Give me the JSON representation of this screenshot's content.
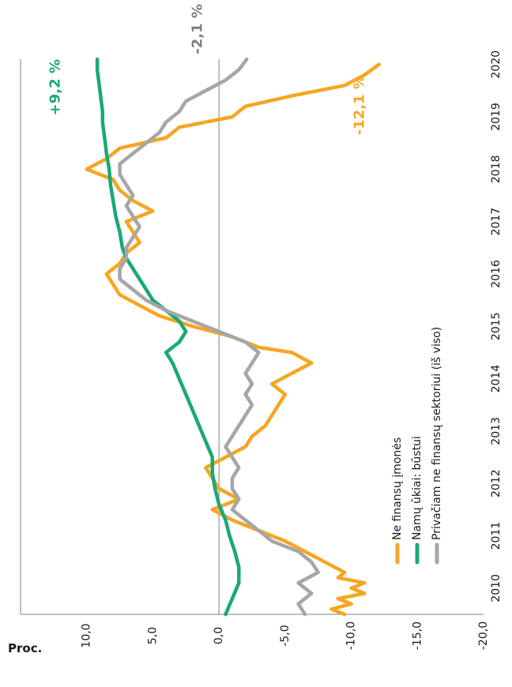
{
  "chart_data": {
    "type": "line",
    "orientation": "rotated-90-counterclockwise",
    "ylabel": "Proc.",
    "ylim": [
      -20,
      15
    ],
    "yticks": [
      -20,
      -15,
      -10,
      -5,
      0,
      5,
      10
    ],
    "ytick_labels": [
      "-20,0",
      "-15,0",
      "-10,0",
      "-5,0",
      "0,0",
      "5,0",
      "10,0"
    ],
    "xlim": [
      2010.0,
      2020.6
    ],
    "xticks": [
      2010,
      2011,
      2012,
      2013,
      2014,
      2015,
      2016,
      2017,
      2018,
      2019,
      2020
    ],
    "xtick_labels": [
      "2010",
      "2011",
      "2012",
      "2013",
      "2014",
      "2015",
      "2016",
      "2017",
      "2018",
      "2019",
      "2020"
    ],
    "zero_line": true,
    "grid": false,
    "legend_position": "bottom-left",
    "series": [
      {
        "name": "Ne finansų įmonės",
        "color": "#f5a623",
        "x": [
          2010.0,
          2010.1,
          2010.2,
          2010.3,
          2010.4,
          2010.5,
          2010.6,
          2010.7,
          2010.8,
          2011.0,
          2011.2,
          2011.4,
          2011.6,
          2011.8,
          2012.0,
          2012.2,
          2012.4,
          2012.6,
          2012.8,
          2013.0,
          2013.2,
          2013.4,
          2013.6,
          2013.8,
          2014.0,
          2014.2,
          2014.4,
          2014.6,
          2014.8,
          2015.0,
          2015.1,
          2015.3,
          2015.5,
          2015.7,
          2015.9,
          2016.1,
          2016.3,
          2016.5,
          2016.7,
          2016.9,
          2017.1,
          2017.3,
          2017.5,
          2017.7,
          2017.9,
          2018.1,
          2018.3,
          2018.5,
          2018.7,
          2018.9,
          2019.1,
          2019.3,
          2019.5,
          2019.7,
          2019.9,
          2020.1,
          2020.3,
          2020.5
        ],
        "y": [
          -9.5,
          -8.5,
          -10.0,
          -9.0,
          -11.0,
          -10.0,
          -11.0,
          -9.0,
          -9.5,
          -8.0,
          -6.5,
          -5.0,
          -3.0,
          -1.0,
          0.5,
          -1.5,
          0.0,
          0.5,
          1.0,
          -0.5,
          -2.0,
          -2.5,
          -3.5,
          -4.0,
          -4.5,
          -5.0,
          -4.0,
          -5.5,
          -7.0,
          -5.5,
          -3.0,
          -1.0,
          2.0,
          4.5,
          6.0,
          7.5,
          8.0,
          8.5,
          7.5,
          7.0,
          6.0,
          6.5,
          7.0,
          5.0,
          6.5,
          7.5,
          8.0,
          10.0,
          8.5,
          7.5,
          4.0,
          3.0,
          -1.0,
          -2.0,
          -5.5,
          -9.5,
          -11.0,
          -12.1
        ]
      },
      {
        "name": "Namų ūkiai: būstui",
        "color": "#1aa87a",
        "x": [
          2010.0,
          2010.3,
          2010.6,
          2010.9,
          2011.2,
          2011.5,
          2011.8,
          2012.1,
          2012.4,
          2012.7,
          2013.0,
          2013.3,
          2013.6,
          2013.9,
          2014.2,
          2014.5,
          2014.8,
          2015.0,
          2015.2,
          2015.4,
          2015.6,
          2015.8,
          2016.0,
          2016.2,
          2016.4,
          2016.6,
          2016.8,
          2017.0,
          2017.3,
          2017.6,
          2017.9,
          2018.2,
          2018.5,
          2018.8,
          2019.0,
          2019.2,
          2019.4,
          2019.6,
          2019.8,
          2020.0,
          2020.2,
          2020.4,
          2020.6
        ],
        "y": [
          -0.5,
          -1.0,
          -1.5,
          -1.5,
          -1.2,
          -0.8,
          -0.5,
          0.0,
          0.3,
          0.5,
          0.5,
          1.0,
          1.5,
          2.0,
          2.5,
          3.0,
          3.5,
          4.0,
          3.0,
          2.5,
          3.0,
          4.0,
          5.0,
          5.5,
          6.0,
          6.5,
          7.0,
          7.3,
          7.5,
          7.8,
          8.0,
          8.2,
          8.3,
          8.5,
          8.6,
          8.7,
          8.8,
          8.8,
          8.9,
          9.0,
          9.1,
          9.2,
          9.2
        ]
      },
      {
        "name": "Privačiam ne finansų sektoriui (iš viso)",
        "color": "#a6a6a6",
        "x": [
          2010.0,
          2010.2,
          2010.4,
          2010.6,
          2010.8,
          2011.0,
          2011.2,
          2011.4,
          2011.6,
          2011.8,
          2012.0,
          2012.2,
          2012.4,
          2012.6,
          2012.8,
          2013.0,
          2013.2,
          2013.4,
          2013.6,
          2013.8,
          2014.0,
          2014.2,
          2014.4,
          2014.6,
          2014.8,
          2015.0,
          2015.2,
          2015.4,
          2015.6,
          2015.8,
          2016.0,
          2016.2,
          2016.4,
          2016.6,
          2016.8,
          2017.0,
          2017.2,
          2017.4,
          2017.6,
          2017.8,
          2018.0,
          2018.2,
          2018.4,
          2018.6,
          2018.8,
          2019.0,
          2019.2,
          2019.4,
          2019.6,
          2019.8,
          2020.0,
          2020.2,
          2020.4,
          2020.6
        ],
        "y": [
          -6.5,
          -6.0,
          -7.0,
          -6.0,
          -7.5,
          -7.0,
          -6.0,
          -4.0,
          -3.0,
          -2.0,
          -1.0,
          -1.5,
          -1.0,
          -1.0,
          -1.5,
          -1.0,
          -0.5,
          -1.0,
          -1.5,
          -2.0,
          -2.5,
          -2.0,
          -2.5,
          -2.0,
          -2.5,
          -3.0,
          -2.0,
          0.0,
          2.0,
          4.0,
          5.5,
          6.5,
          7.5,
          7.5,
          7.0,
          7.0,
          6.5,
          6.0,
          6.5,
          7.0,
          6.5,
          7.0,
          7.5,
          7.5,
          6.5,
          5.5,
          4.5,
          4.0,
          3.0,
          2.5,
          1.0,
          -0.5,
          -1.5,
          -2.1
        ]
      }
    ],
    "annotations": [
      {
        "text": "+9,2 %",
        "color": "#1aa87a"
      },
      {
        "text": "-2,1 %",
        "color": "#808080"
      },
      {
        "text": "-12,1 %",
        "color": "#f5a623"
      }
    ]
  }
}
